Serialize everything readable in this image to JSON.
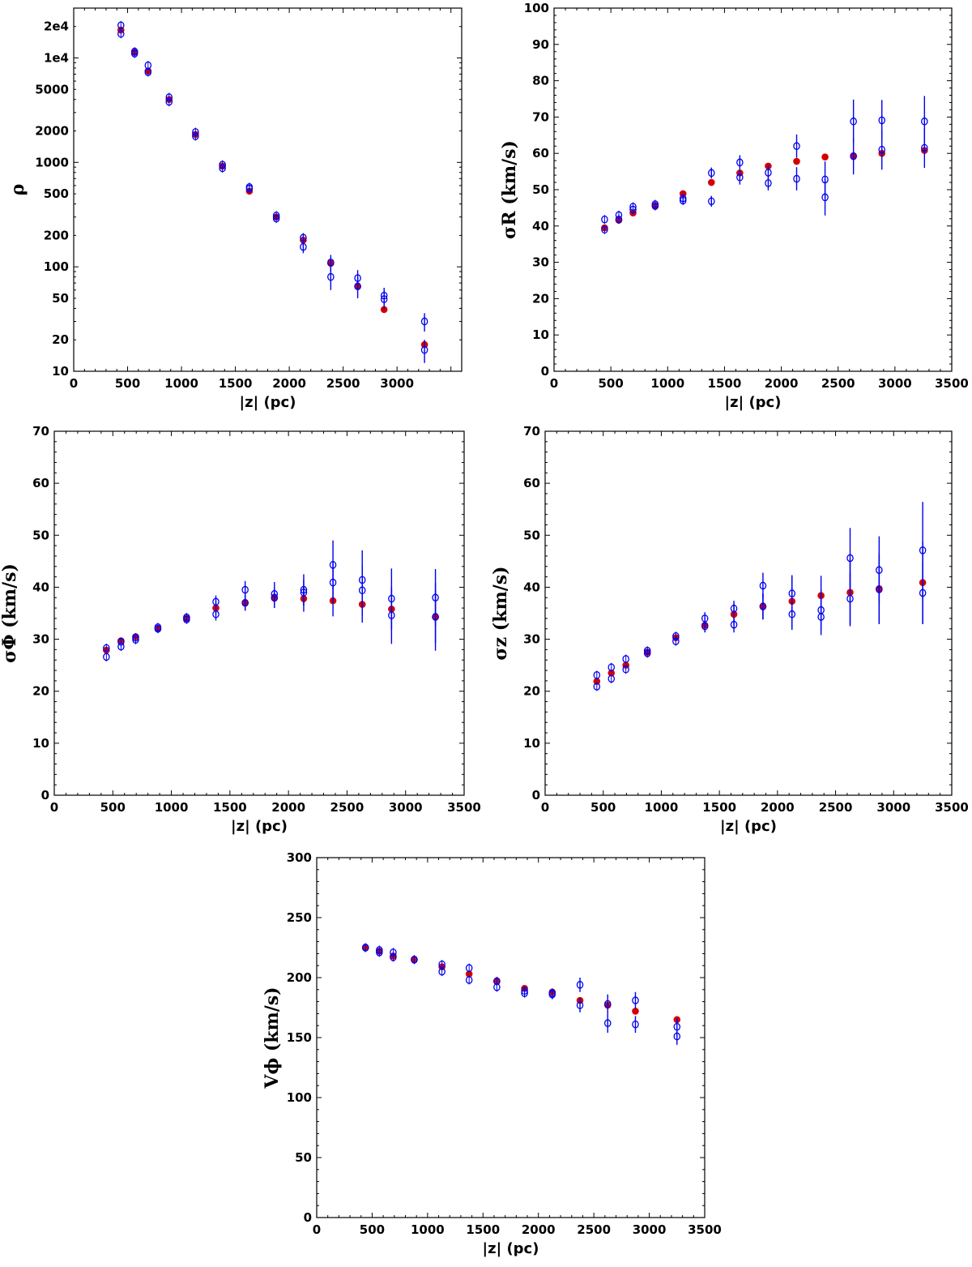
{
  "colors": {
    "filled_marker": "#d40000",
    "open_marker": "#0000ee",
    "axis": "#000000"
  },
  "chart_data": [
    {
      "id": "rho",
      "type": "scatter",
      "xlabel": "|z| (pc)",
      "ylabel": "ρ",
      "xlim": [
        0,
        3600
      ],
      "ylim": [
        10,
        30000
      ],
      "yscale": "log",
      "xticks": [
        0,
        500,
        1000,
        1500,
        2000,
        2500,
        3000
      ],
      "yticks": [
        10,
        20,
        50,
        100,
        200,
        500,
        1000,
        2000,
        5000,
        10000,
        20000
      ],
      "yticklabels": [
        "10",
        "20",
        "50",
        "100",
        "200",
        "500",
        "1000",
        "2000",
        "5000",
        "1e4",
        "2e4"
      ],
      "series": [
        {
          "marker": "filled",
          "x": [
            438,
            565,
            690,
            885,
            1130,
            1380,
            1630,
            1880,
            2130,
            2385,
            2635,
            2880,
            3255
          ],
          "y": [
            18500,
            11300,
            7500,
            4000,
            1850,
            920,
            530,
            300,
            180,
            108,
            65,
            39,
            18
          ],
          "err": [
            0,
            0,
            0,
            0,
            0,
            0,
            0,
            0,
            0,
            0,
            0,
            0,
            0
          ]
        },
        {
          "marker": "open",
          "x": [
            438,
            565,
            690,
            885,
            1130,
            1380,
            1630,
            1880,
            2130,
            2385,
            2635,
            2880,
            3255
          ],
          "y": [
            20500,
            11500,
            8500,
            4200,
            1950,
            950,
            580,
            310,
            190,
            110,
            78,
            53,
            30
          ],
          "err": [
            0,
            0,
            0,
            0,
            0,
            0,
            0,
            0,
            20,
            20,
            15,
            10,
            6
          ]
        },
        {
          "marker": "open",
          "x": [
            438,
            565,
            690,
            885,
            1130,
            1380,
            1630,
            1880,
            2130,
            2385,
            2635,
            2880,
            3255
          ],
          "y": [
            17000,
            11000,
            7300,
            3800,
            1780,
            880,
            560,
            290,
            155,
            80,
            65,
            49,
            16
          ],
          "err": [
            0,
            0,
            0,
            0,
            0,
            0,
            0,
            0,
            20,
            20,
            15,
            10,
            4
          ]
        }
      ]
    },
    {
      "id": "sigma_r",
      "type": "scatter",
      "xlabel": "|z| (pc)",
      "ylabel": "σR (km/s)",
      "xlim": [
        0,
        3500
      ],
      "ylim": [
        0,
        100
      ],
      "yscale": "linear",
      "xticks": [
        0,
        500,
        1000,
        1500,
        2000,
        2500,
        3000,
        3500
      ],
      "yticks": [
        0,
        10,
        20,
        30,
        40,
        50,
        60,
        70,
        80,
        90,
        100
      ],
      "series": [
        {
          "marker": "filled",
          "x": [
            445,
            570,
            695,
            890,
            1135,
            1385,
            1635,
            1885,
            2135,
            2385,
            2635,
            2885,
            3260
          ],
          "y": [
            39.5,
            41.6,
            43.6,
            45.6,
            48.9,
            52.0,
            54.6,
            56.5,
            57.8,
            59.0,
            59.3,
            60.0,
            60.8
          ],
          "err": [
            0,
            0,
            0,
            0,
            0,
            0,
            0,
            0,
            0,
            0,
            0,
            0,
            0
          ]
        },
        {
          "marker": "open",
          "x": [
            445,
            570,
            695,
            890,
            1135,
            1385,
            1635,
            1885,
            2135,
            2385,
            2635,
            2885,
            3260
          ],
          "y": [
            41.8,
            43.0,
            45.3,
            46.0,
            47.6,
            54.6,
            57.5,
            54.7,
            62.0,
            52.8,
            68.8,
            69.1,
            68.8
          ],
          "err": [
            0,
            0,
            0,
            0,
            0.8,
            1.5,
            2.0,
            2.0,
            3.2,
            5.0,
            6.0,
            5.6,
            7.0
          ]
        },
        {
          "marker": "open",
          "x": [
            445,
            570,
            695,
            890,
            1135,
            1385,
            1635,
            1885,
            2135,
            2385,
            2635,
            2885,
            3260
          ],
          "y": [
            39.0,
            41.8,
            44.5,
            45.5,
            47.0,
            46.8,
            53.4,
            51.8,
            53.0,
            47.9,
            59.2,
            61.0,
            61.5
          ],
          "err": [
            0,
            0,
            0,
            0,
            0.8,
            1.5,
            2.0,
            2.0,
            3.2,
            5.0,
            5.0,
            5.5,
            5.5
          ]
        }
      ]
    },
    {
      "id": "sigma_phi",
      "type": "scatter",
      "xlabel": "|z| (pc)",
      "ylabel": "σΦ (km/s)",
      "xlim": [
        0,
        3500
      ],
      "ylim": [
        0,
        70
      ],
      "yscale": "linear",
      "xticks": [
        0,
        500,
        1000,
        1500,
        2000,
        2500,
        3000,
        3500
      ],
      "yticks": [
        0,
        10,
        20,
        30,
        40,
        50,
        60,
        70
      ],
      "series": [
        {
          "marker": "filled",
          "x": [
            445,
            570,
            695,
            885,
            1130,
            1380,
            1630,
            1880,
            2130,
            2380,
            2630,
            2880,
            3255
          ],
          "y": [
            27.9,
            29.7,
            30.5,
            32.0,
            34.0,
            36.0,
            37.0,
            37.9,
            37.8,
            37.4,
            36.7,
            35.8,
            34.3
          ],
          "err": [
            0,
            0,
            0,
            0,
            0.8,
            1.2,
            1.5,
            1.8,
            2.5,
            3.0,
            3.5,
            4.0,
            5.0
          ]
        },
        {
          "marker": "open",
          "x": [
            445,
            570,
            695,
            885,
            1130,
            1380,
            1630,
            1880,
            2130,
            2380,
            2630,
            2880,
            3255
          ],
          "y": [
            28.3,
            29.5,
            30.3,
            32.3,
            34.2,
            37.2,
            39.5,
            38.7,
            39.5,
            44.3,
            41.4,
            37.8,
            38.0
          ],
          "err": [
            0,
            0,
            0,
            0,
            0,
            1.2,
            1.7,
            2.3,
            3.0,
            4.7,
            5.7,
            5.8,
            5.5
          ]
        },
        {
          "marker": "open",
          "x": [
            445,
            570,
            695,
            885,
            1130,
            1380,
            1630,
            1880,
            2130,
            2380,
            2630,
            2880,
            3255
          ],
          "y": [
            26.6,
            28.6,
            29.9,
            32.0,
            33.8,
            34.8,
            37.0,
            38.0,
            39.0,
            40.9,
            39.4,
            34.6,
            34.3
          ],
          "err": [
            0,
            0,
            0,
            0,
            0,
            1.2,
            1.5,
            2.0,
            2.5,
            4.0,
            4.8,
            5.5,
            6.5
          ]
        }
      ]
    },
    {
      "id": "sigma_z",
      "type": "scatter",
      "xlabel": "|z| (pc)",
      "ylabel": "σz (km/s)",
      "xlim": [
        0,
        3500
      ],
      "ylim": [
        0,
        70
      ],
      "yscale": "linear",
      "xticks": [
        0,
        500,
        1000,
        1500,
        2000,
        2500,
        3000,
        3500
      ],
      "yticks": [
        0,
        10,
        20,
        30,
        40,
        50,
        60,
        70
      ],
      "series": [
        {
          "marker": "filled",
          "x": [
            445,
            570,
            695,
            880,
            1125,
            1375,
            1625,
            1875,
            2125,
            2375,
            2625,
            2875,
            3250
          ],
          "y": [
            21.9,
            23.5,
            25.0,
            27.5,
            30.3,
            32.7,
            34.8,
            36.3,
            37.3,
            38.4,
            39.0,
            39.7,
            40.9
          ],
          "err": [
            0,
            0,
            0,
            0,
            0,
            1.2,
            2.0,
            2.5,
            5.0,
            3.8,
            6.5,
            6.8,
            8.0
          ]
        },
        {
          "marker": "open",
          "x": [
            445,
            570,
            695,
            880,
            1125,
            1375,
            1625,
            1875,
            2125,
            2375,
            2625,
            2875,
            3250
          ],
          "y": [
            23.1,
            24.6,
            26.2,
            27.8,
            30.6,
            34.0,
            35.9,
            40.3,
            38.8,
            35.6,
            45.6,
            43.3,
            47.1
          ],
          "err": [
            0,
            0,
            0,
            0,
            0,
            1.2,
            1.5,
            2.5,
            3.5,
            4.0,
            5.8,
            6.5,
            9.3
          ]
        },
        {
          "marker": "open",
          "x": [
            445,
            570,
            695,
            880,
            1125,
            1375,
            1625,
            1875,
            2125,
            2375,
            2625,
            2875,
            3250
          ],
          "y": [
            20.9,
            22.4,
            24.2,
            27.3,
            29.6,
            32.5,
            32.8,
            36.3,
            34.8,
            34.3,
            37.8,
            39.6,
            38.9
          ],
          "err": [
            0,
            0,
            0,
            0,
            0,
            1.2,
            1.5,
            2.5,
            3.0,
            3.5,
            5.0,
            6.5,
            6.0
          ]
        }
      ]
    },
    {
      "id": "v_phi",
      "type": "scatter",
      "xlabel": "|z| (pc)",
      "ylabel": "Vϕ (km/s)",
      "xlim": [
        0,
        3500
      ],
      "ylim": [
        0,
        300
      ],
      "yscale": "linear",
      "xticks": [
        0,
        500,
        1000,
        1500,
        2000,
        2500,
        3000,
        3500
      ],
      "yticks": [
        0,
        50,
        100,
        150,
        200,
        250,
        300
      ],
      "series": [
        {
          "marker": "filled",
          "x": [
            440,
            565,
            690,
            880,
            1130,
            1375,
            1625,
            1875,
            2125,
            2375,
            2625,
            2875,
            3250
          ],
          "y": [
            225,
            222,
            218,
            215,
            209,
            203,
            197,
            191,
            188,
            181,
            177,
            172,
            165
          ],
          "err": [
            0,
            0,
            0,
            0,
            0,
            0,
            0,
            0,
            0,
            0,
            0,
            0,
            0
          ]
        },
        {
          "marker": "open",
          "x": [
            440,
            565,
            690,
            880,
            1130,
            1375,
            1625,
            1875,
            2125,
            2375,
            2625,
            2875,
            3250
          ],
          "y": [
            225,
            223,
            221,
            215,
            211,
            208,
            197,
            189,
            187,
            194,
            178,
            181,
            159
          ],
          "err": [
            0,
            0,
            0,
            0,
            0,
            0,
            0,
            0,
            4,
            6,
            8,
            7,
            7
          ]
        },
        {
          "marker": "open",
          "x": [
            440,
            565,
            690,
            880,
            1130,
            1375,
            1625,
            1875,
            2125,
            2375,
            2625,
            2875,
            3250
          ],
          "y": [
            225,
            221,
            217,
            215,
            205,
            198,
            192,
            187,
            186,
            177,
            162,
            161,
            151
          ],
          "err": [
            0,
            0,
            0,
            0,
            0,
            0,
            0,
            0,
            4,
            6,
            8,
            7,
            7
          ]
        }
      ]
    }
  ]
}
